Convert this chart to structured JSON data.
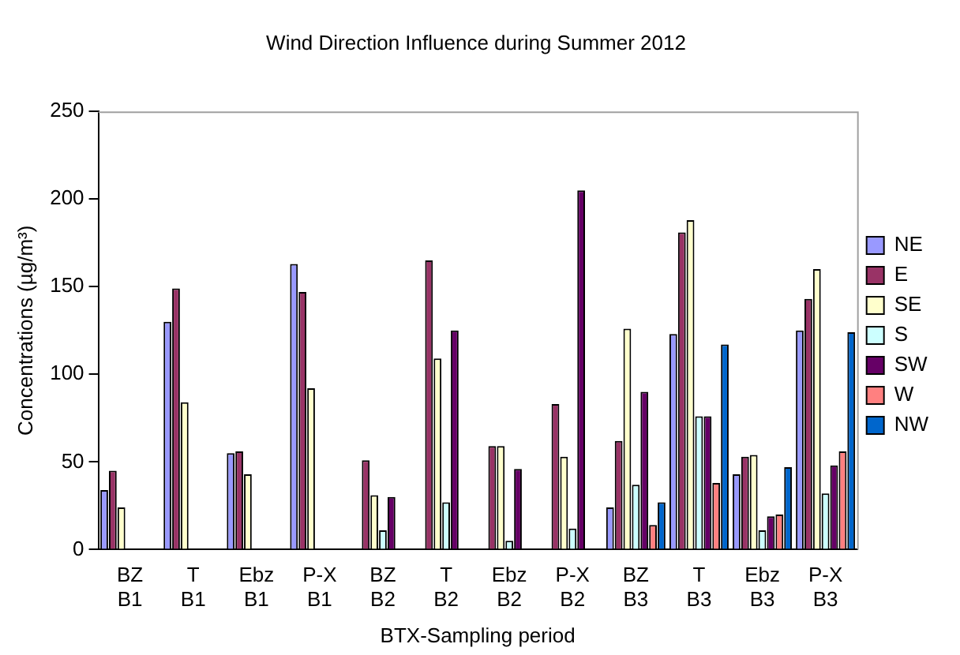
{
  "chart_data": {
    "type": "bar",
    "title": "Wind Direction Influence during Summer 2012",
    "xlabel": "BTX-Sampling period",
    "ylabel": "Concentrations (µg/m³)",
    "categories": [
      "BZ B1",
      "T B1",
      "Ebz B1",
      "P-X B1",
      "BZ B2",
      "T B2",
      "Ebz B2",
      "P-X B2",
      "BZ B3",
      "T B3",
      "Ebz B3",
      "P-X B3"
    ],
    "series": [
      {
        "name": "NE",
        "color": "#9999ff",
        "values": [
          34,
          130,
          55,
          163,
          null,
          null,
          null,
          null,
          24,
          123,
          43,
          125
        ]
      },
      {
        "name": "E",
        "color": "#993366",
        "values": [
          45,
          149,
          56,
          147,
          51,
          165,
          59,
          83,
          62,
          181,
          53,
          143
        ]
      },
      {
        "name": "SE",
        "color": "#ffffcc",
        "values": [
          24,
          84,
          43,
          92,
          31,
          109,
          59,
          53,
          126,
          188,
          54,
          160
        ]
      },
      {
        "name": "S",
        "color": "#ccffff",
        "values": [
          null,
          null,
          null,
          null,
          11,
          27,
          5,
          12,
          37,
          76,
          11,
          32
        ]
      },
      {
        "name": "SW",
        "color": "#660066",
        "values": [
          null,
          null,
          null,
          null,
          30,
          125,
          46,
          205,
          90,
          76,
          19,
          48
        ]
      },
      {
        "name": "W",
        "color": "#ff8080",
        "values": [
          null,
          null,
          null,
          null,
          null,
          null,
          null,
          null,
          14,
          38,
          20,
          56
        ]
      },
      {
        "name": "NW",
        "color": "#0066cc",
        "values": [
          null,
          null,
          null,
          null,
          null,
          null,
          null,
          null,
          27,
          117,
          47,
          124
        ]
      }
    ],
    "ylim": [
      0,
      250
    ],
    "yticks": [
      0,
      50,
      100,
      150,
      200,
      250
    ],
    "grid": false,
    "legend": "right"
  }
}
